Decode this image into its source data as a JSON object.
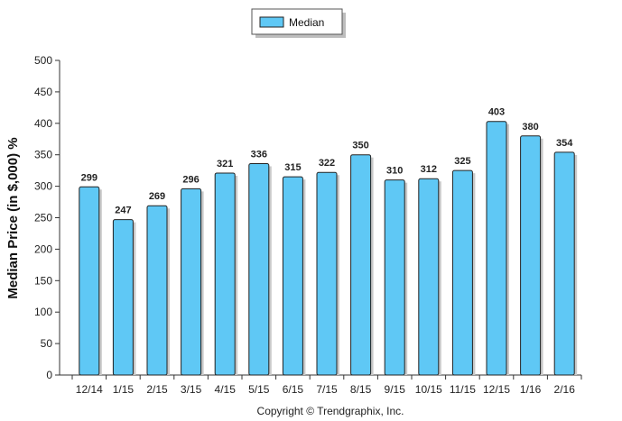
{
  "chart_data": {
    "type": "bar",
    "categories": [
      "12/14",
      "1/15",
      "2/15",
      "3/15",
      "4/15",
      "5/15",
      "6/15",
      "7/15",
      "8/15",
      "9/15",
      "10/15",
      "11/15",
      "12/15",
      "1/16",
      "2/16"
    ],
    "series": [
      {
        "name": "Median",
        "values": [
          299,
          247,
          269,
          296,
          321,
          336,
          315,
          322,
          350,
          310,
          312,
          325,
          403,
          380,
          354
        ]
      }
    ],
    "ylabel": "Median Price (in $,000) %",
    "xlabel": "",
    "ylim": [
      0,
      500
    ],
    "yticks": [
      0,
      50,
      100,
      150,
      200,
      250,
      300,
      350,
      400,
      450,
      500
    ],
    "legend_position": "top-center",
    "grid": false,
    "colors": {
      "bar": "#5fc8f5",
      "axis": "#333333"
    }
  },
  "footer": {
    "copyright": "Copyright © Trendgraphix, Inc."
  }
}
